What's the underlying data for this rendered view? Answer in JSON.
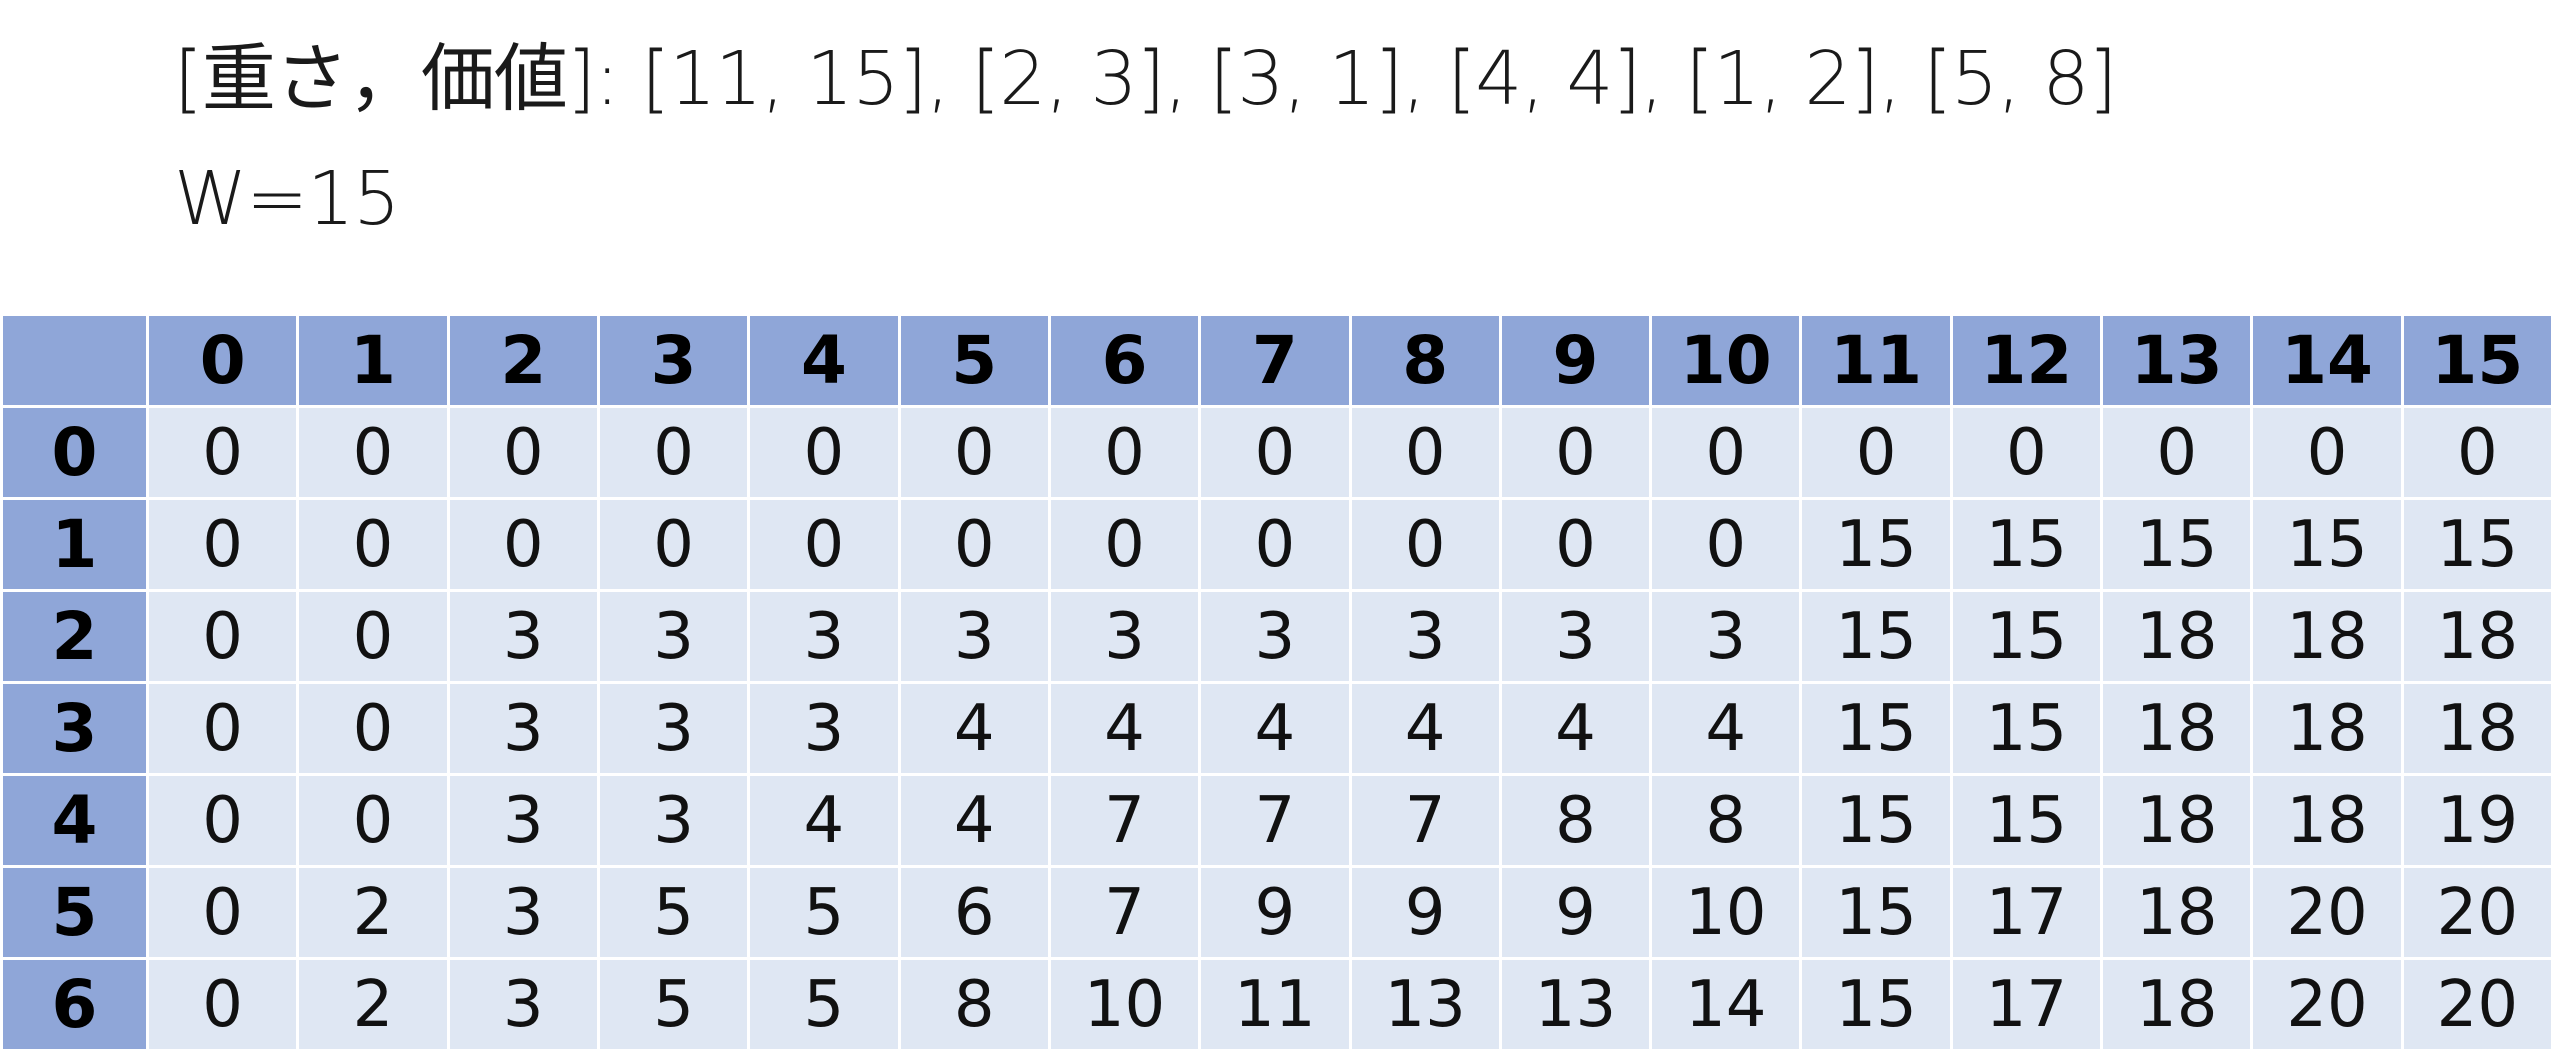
{
  "heading": {
    "items_line": "[重さ，価値]: [11, 15], [2, 3], [3, 1], [4, 4], [1, 2], [5, 8]",
    "capacity_line": "W=15"
  },
  "table": {
    "column_headers": [
      "0",
      "1",
      "2",
      "3",
      "4",
      "5",
      "6",
      "7",
      "8",
      "9",
      "10",
      "11",
      "12",
      "13",
      "14",
      "15"
    ],
    "rows": [
      {
        "label": "0",
        "cells": [
          "0",
          "0",
          "0",
          "0",
          "0",
          "0",
          "0",
          "0",
          "0",
          "0",
          "0",
          "0",
          "0",
          "0",
          "0",
          "0"
        ]
      },
      {
        "label": "1",
        "cells": [
          "0",
          "0",
          "0",
          "0",
          "0",
          "0",
          "0",
          "0",
          "0",
          "0",
          "0",
          "15",
          "15",
          "15",
          "15",
          "15"
        ]
      },
      {
        "label": "2",
        "cells": [
          "0",
          "0",
          "3",
          "3",
          "3",
          "3",
          "3",
          "3",
          "3",
          "3",
          "3",
          "15",
          "15",
          "18",
          "18",
          "18"
        ]
      },
      {
        "label": "3",
        "cells": [
          "0",
          "0",
          "3",
          "3",
          "3",
          "4",
          "4",
          "4",
          "4",
          "4",
          "4",
          "15",
          "15",
          "18",
          "18",
          "18"
        ]
      },
      {
        "label": "4",
        "cells": [
          "0",
          "0",
          "3",
          "3",
          "4",
          "4",
          "7",
          "7",
          "7",
          "8",
          "8",
          "15",
          "15",
          "18",
          "18",
          "19"
        ]
      },
      {
        "label": "5",
        "cells": [
          "0",
          "2",
          "3",
          "5",
          "5",
          "6",
          "7",
          "9",
          "9",
          "9",
          "10",
          "15",
          "17",
          "18",
          "20",
          "20"
        ]
      },
      {
        "label": "6",
        "cells": [
          "0",
          "2",
          "3",
          "5",
          "5",
          "8",
          "10",
          "11",
          "13",
          "13",
          "14",
          "15",
          "17",
          "18",
          "20",
          "20"
        ]
      }
    ]
  },
  "colors": {
    "header_fill": "#8fa6d8",
    "cell_fill": "#dfe7f3",
    "grid_line": "#ffffff"
  }
}
